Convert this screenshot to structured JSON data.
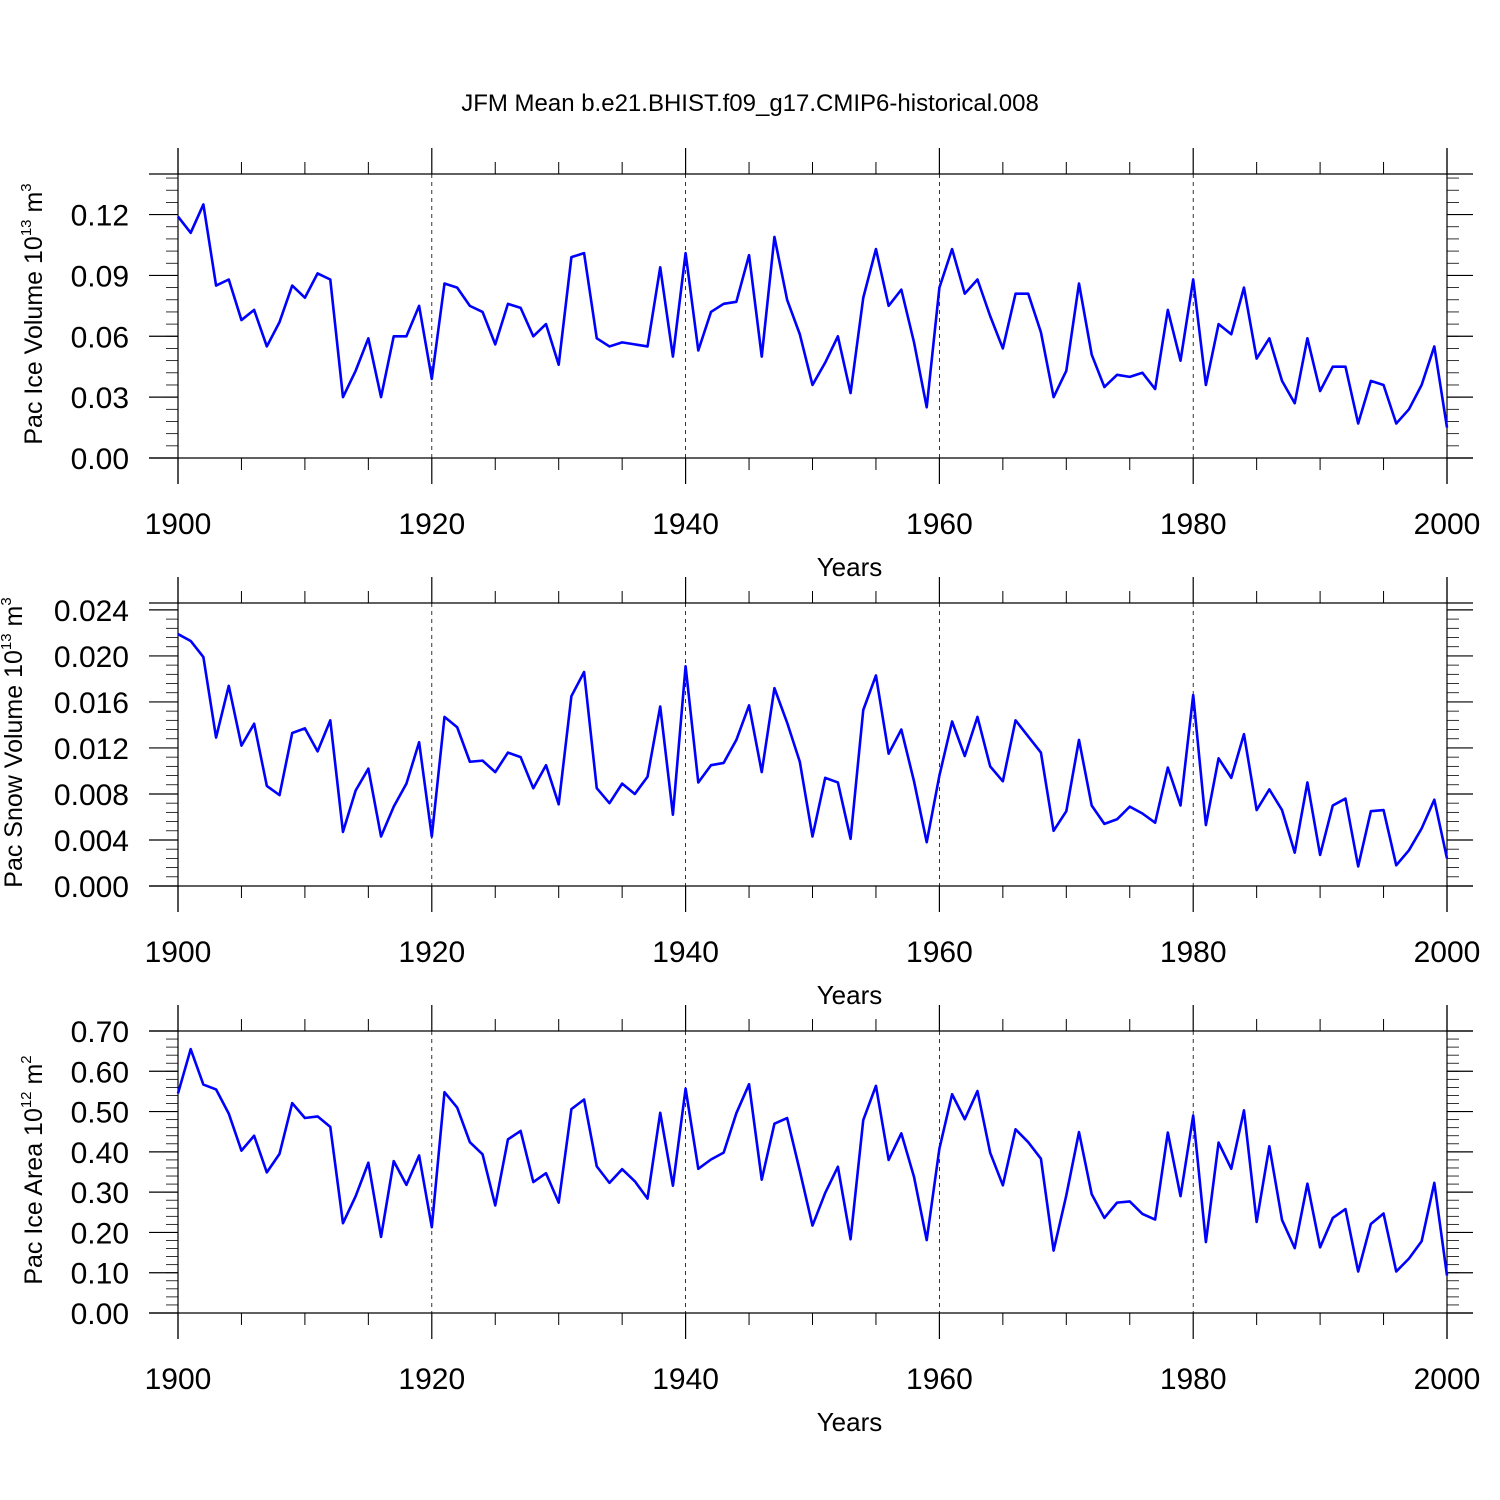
{
  "figure": {
    "title": "JFM Mean b.e21.BHIST.f09_g17.CMIP6-historical.008",
    "line_color": "#0000ff"
  },
  "chart_data": [
    {
      "type": "line",
      "title": "JFM Mean b.e21.BHIST.f09_g17.CMIP6-historical.008",
      "xlabel": "Years",
      "ylabel": {
        "text": "Pac Ice Volume 10",
        "exp": "13",
        "unit": " m",
        "unit_exp": "3"
      },
      "xlim": [
        1900,
        2000
      ],
      "ylim": [
        0,
        0.14
      ],
      "xticks": [
        1900,
        1920,
        1940,
        1960,
        1980,
        2000
      ],
      "xtick_labels": [
        "1900",
        "1920",
        "1940",
        "1960",
        "1980",
        "2000"
      ],
      "yticks": [
        0,
        0.03,
        0.06,
        0.09,
        0.12
      ],
      "ytick_labels": [
        "0.00",
        "0.03",
        "0.06",
        "0.09",
        "0.12"
      ],
      "y_minor_step": 0.006,
      "grid": "dashed vertical at major x ticks",
      "series": [
        {
          "x_start": 1900,
          "x_step": 1,
          "values": [
            0.119,
            0.111,
            0.125,
            0.085,
            0.088,
            0.068,
            0.073,
            0.055,
            0.067,
            0.085,
            0.079,
            0.091,
            0.088,
            0.03,
            0.043,
            0.059,
            0.03,
            0.06,
            0.06,
            0.075,
            0.039,
            0.086,
            0.084,
            0.075,
            0.072,
            0.056,
            0.076,
            0.074,
            0.06,
            0.066,
            0.046,
            0.099,
            0.101,
            0.059,
            0.055,
            0.057,
            0.056,
            0.055,
            0.094,
            0.05,
            0.101,
            0.053,
            0.072,
            0.076,
            0.077,
            0.1,
            0.05,
            0.109,
            0.078,
            0.061,
            0.036,
            0.047,
            0.06,
            0.032,
            0.079,
            0.103,
            0.075,
            0.083,
            0.057,
            0.025,
            0.084,
            0.103,
            0.081,
            0.088,
            0.07,
            0.054,
            0.081,
            0.081,
            0.062,
            0.03,
            0.043,
            0.086,
            0.051,
            0.035,
            0.041,
            0.04,
            0.042,
            0.034,
            0.073,
            0.048,
            0.088,
            0.036,
            0.066,
            0.061,
            0.084,
            0.049,
            0.059,
            0.038,
            0.027,
            0.059,
            0.033,
            0.045,
            0.045,
            0.017,
            0.038,
            0.036,
            0.017,
            0.024,
            0.036,
            0.055,
            0.015
          ]
        }
      ]
    },
    {
      "type": "line",
      "xlabel": "Years",
      "ylabel": {
        "text": "Pac Snow Volume 10",
        "exp": "13",
        "unit": " m",
        "unit_exp": "3"
      },
      "xlim": [
        1900,
        2000
      ],
      "ylim": [
        0,
        0.0246
      ],
      "xticks": [
        1900,
        1920,
        1940,
        1960,
        1980,
        2000
      ],
      "xtick_labels": [
        "1900",
        "1920",
        "1940",
        "1960",
        "1980",
        "2000"
      ],
      "yticks": [
        0,
        0.004,
        0.008,
        0.012,
        0.016,
        0.02,
        0.024
      ],
      "ytick_labels": [
        "0.000",
        "0.004",
        "0.008",
        "0.012",
        "0.016",
        "0.020",
        "0.024"
      ],
      "y_minor_step": 0.0008,
      "grid": "dashed vertical at major x ticks",
      "series": [
        {
          "x_start": 1900,
          "x_step": 1,
          "values": [
            0.0219,
            0.0213,
            0.0199,
            0.0129,
            0.0174,
            0.0122,
            0.0141,
            0.0087,
            0.0079,
            0.0133,
            0.0137,
            0.0117,
            0.0144,
            0.0047,
            0.0083,
            0.0102,
            0.0043,
            0.0069,
            0.0089,
            0.0125,
            0.0043,
            0.0147,
            0.0138,
            0.0108,
            0.0109,
            0.0099,
            0.0116,
            0.0112,
            0.0085,
            0.0105,
            0.0071,
            0.0165,
            0.0186,
            0.0085,
            0.0072,
            0.0089,
            0.008,
            0.0095,
            0.0156,
            0.0062,
            0.0191,
            0.009,
            0.0105,
            0.0107,
            0.0127,
            0.0157,
            0.0099,
            0.0172,
            0.0142,
            0.0108,
            0.0043,
            0.0094,
            0.009,
            0.0041,
            0.0153,
            0.0183,
            0.0115,
            0.0136,
            0.0091,
            0.0038,
            0.0096,
            0.0143,
            0.0113,
            0.0147,
            0.0104,
            0.0091,
            0.0144,
            0.013,
            0.0116,
            0.0048,
            0.0065,
            0.0127,
            0.007,
            0.0054,
            0.0058,
            0.0069,
            0.0063,
            0.0055,
            0.0103,
            0.007,
            0.0166,
            0.0053,
            0.0111,
            0.0094,
            0.0132,
            0.0066,
            0.0084,
            0.0066,
            0.0029,
            0.009,
            0.0027,
            0.007,
            0.0076,
            0.0017,
            0.0065,
            0.0066,
            0.0018,
            0.0031,
            0.005,
            0.0075,
            0.0024
          ]
        }
      ]
    },
    {
      "type": "line",
      "xlabel": "Years",
      "ylabel": {
        "text": "Pac Ice Area 10",
        "exp": "12",
        "unit": " m",
        "unit_exp": "2"
      },
      "xlim": [
        1900,
        2000
      ],
      "ylim": [
        0,
        0.7
      ],
      "xticks": [
        1900,
        1920,
        1940,
        1960,
        1980,
        2000
      ],
      "xtick_labels": [
        "1900",
        "1920",
        "1940",
        "1960",
        "1980",
        "2000"
      ],
      "yticks": [
        0,
        0.1,
        0.2,
        0.3,
        0.4,
        0.5,
        0.6,
        0.7
      ],
      "ytick_labels": [
        "0.00",
        "0.10",
        "0.20",
        "0.30",
        "0.40",
        "0.50",
        "0.60",
        "0.70"
      ],
      "y_minor_step": 0.02,
      "grid": "dashed vertical at major x ticks",
      "series": [
        {
          "x_start": 1900,
          "x_step": 1,
          "values": [
            0.545,
            0.655,
            0.567,
            0.555,
            0.495,
            0.403,
            0.44,
            0.349,
            0.395,
            0.521,
            0.484,
            0.488,
            0.462,
            0.223,
            0.29,
            0.373,
            0.189,
            0.377,
            0.318,
            0.391,
            0.213,
            0.548,
            0.51,
            0.424,
            0.394,
            0.267,
            0.431,
            0.452,
            0.325,
            0.347,
            0.274,
            0.506,
            0.53,
            0.364,
            0.323,
            0.357,
            0.327,
            0.284,
            0.497,
            0.316,
            0.557,
            0.358,
            0.381,
            0.398,
            0.496,
            0.568,
            0.331,
            0.47,
            0.484,
            0.353,
            0.217,
            0.298,
            0.363,
            0.183,
            0.479,
            0.564,
            0.38,
            0.446,
            0.338,
            0.181,
            0.408,
            0.543,
            0.481,
            0.551,
            0.398,
            0.317,
            0.456,
            0.424,
            0.383,
            0.155,
            0.292,
            0.449,
            0.295,
            0.236,
            0.274,
            0.277,
            0.246,
            0.232,
            0.448,
            0.29,
            0.49,
            0.176,
            0.423,
            0.358,
            0.503,
            0.226,
            0.414,
            0.231,
            0.161,
            0.321,
            0.163,
            0.236,
            0.258,
            0.103,
            0.221,
            0.247,
            0.103,
            0.135,
            0.178,
            0.323,
            0.093
          ]
        }
      ]
    }
  ]
}
